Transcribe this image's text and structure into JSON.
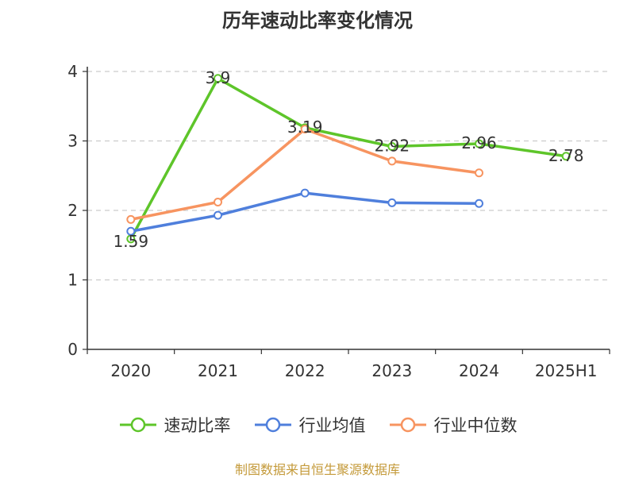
{
  "chart_data": {
    "type": "line",
    "title": "历年速动比率变化情况",
    "categories": [
      "2020",
      "2021",
      "2022",
      "2023",
      "2024",
      "2025H1"
    ],
    "yticks": [
      "0",
      "1",
      "2",
      "3",
      "4"
    ],
    "ylim": [
      0,
      4
    ],
    "grid": true,
    "legend_position": "bottom",
    "series": [
      {
        "name": "速动比率",
        "color": "#5ec52a",
        "values": [
          1.59,
          3.9,
          3.19,
          2.92,
          2.96,
          2.78
        ],
        "labels": [
          "1.59",
          "3.9",
          "3.19",
          "2.92",
          "2.96",
          "2.78"
        ]
      },
      {
        "name": "行业均值",
        "color": "#4f7fdc",
        "values": [
          1.7,
          1.93,
          2.25,
          2.11,
          2.1,
          null
        ]
      },
      {
        "name": "行业中位数",
        "color": "#f79460",
        "values": [
          1.87,
          2.12,
          3.17,
          2.71,
          2.54,
          null
        ]
      }
    ]
  },
  "source": "制图数据来自恒生聚源数据库"
}
